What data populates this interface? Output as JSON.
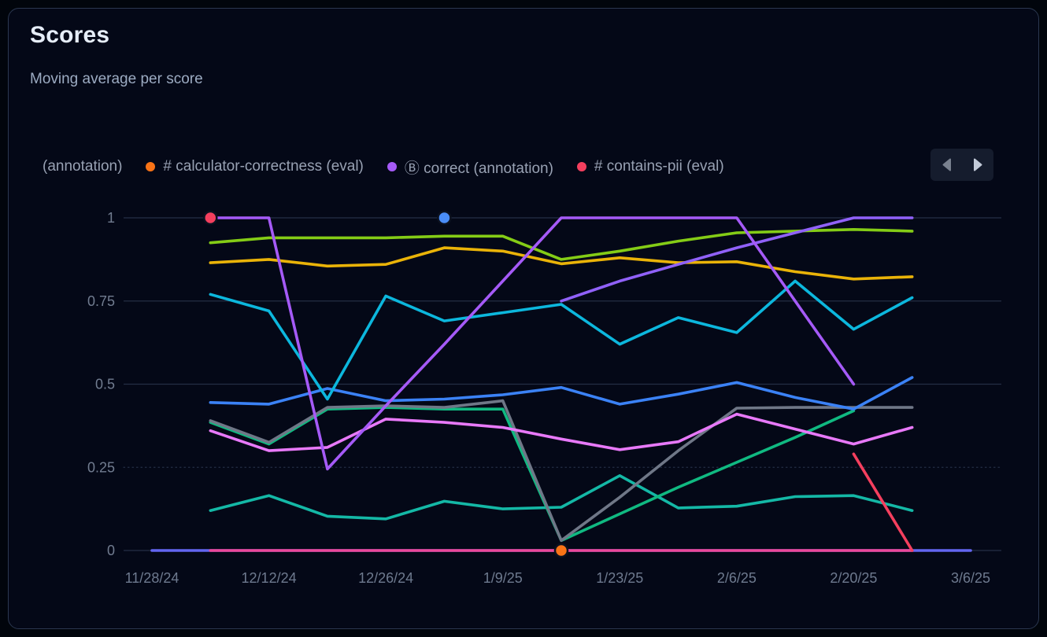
{
  "header": {
    "title": "Scores",
    "subtitle": "Moving average per score"
  },
  "legend": {
    "truncated_item": "(annotation)",
    "items": [
      {
        "label": "# calculator-correctness (eval)",
        "color": "#f97316"
      },
      {
        "label": "Ⓑ correct (annotation)",
        "color": "#a55af7"
      },
      {
        "label": "# contains-pii (eval)",
        "color": "#f43f5e"
      }
    ]
  },
  "nav": {
    "prev": "scroll-legend-left",
    "next": "scroll-legend-right"
  },
  "theme": {
    "card_bg": "#040817",
    "card_border": "#2b3750",
    "grid": "#242e45",
    "axis_text": "#6e7a8f",
    "title_text": "#e6edf8",
    "subtitle_text": "#9cabc2",
    "legend_text": "#98a1b3",
    "nav_bg": "#151c2d",
    "nav_prev_arrow": "#79818f",
    "nav_next_arrow": "#c3cbd9"
  },
  "chart_data": {
    "type": "line",
    "title": "Scores",
    "subtitle": "Moving average per score",
    "x_points": [
      "11/28/24",
      "12/5/24",
      "12/12/24",
      "12/19/24",
      "12/26/24",
      "1/2/25",
      "1/9/25",
      "1/16/25",
      "1/23/25",
      "1/30/25",
      "2/6/25",
      "2/13/25",
      "2/20/25",
      "2/27/25",
      "3/6/25"
    ],
    "x_axis_tick_labels": [
      "11/28/24",
      "12/12/24",
      "12/26/24",
      "1/9/25",
      "1/23/25",
      "2/6/25",
      "2/20/25",
      "3/6/25"
    ],
    "x_axis_tick_indices": [
      0,
      2,
      4,
      6,
      8,
      10,
      12,
      14
    ],
    "y_tick_labels": [
      "0",
      "0.25",
      "0.5",
      "0.75",
      "1"
    ],
    "y_ticks": [
      0,
      0.25,
      0.5,
      0.75,
      1
    ],
    "ylim": [
      0,
      1
    ],
    "grid": "horizontal",
    "legend_position": "top",
    "series": [
      {
        "name": "indigo-zero-line",
        "color": "#6366f1",
        "values": [
          0,
          0,
          0,
          0,
          0,
          0,
          0,
          0,
          0,
          0,
          0,
          0,
          0,
          0,
          0
        ]
      },
      {
        "name": "pink-zero-line",
        "color": "#ec4899",
        "values": [
          null,
          0,
          0,
          0,
          0,
          0,
          0,
          0,
          0,
          0,
          0,
          0,
          0,
          0,
          null
        ]
      },
      {
        "name": "teal-series",
        "color": "#14b8a6",
        "values": [
          null,
          0.12,
          0.165,
          0.103,
          0.095,
          0.148,
          0.125,
          0.13,
          0.225,
          0.128,
          0.133,
          0.162,
          0.165,
          0.12,
          null
        ]
      },
      {
        "name": "emerald-series",
        "color": "#10b981",
        "values": [
          null,
          0.385,
          0.32,
          0.425,
          0.43,
          0.425,
          0.425,
          0.03,
          0.11,
          0.19,
          0.265,
          0.34,
          0.42,
          null,
          null
        ]
      },
      {
        "name": "gray-series",
        "color": "#6f7787",
        "values": [
          null,
          0.39,
          0.325,
          0.43,
          0.435,
          0.43,
          0.45,
          0.03,
          0.16,
          0.3,
          0.428,
          0.43,
          0.43,
          0.43,
          null
        ]
      },
      {
        "name": "magenta-series",
        "color": "#e879f9",
        "values": [
          null,
          0.36,
          0.3,
          0.31,
          0.395,
          0.385,
          0.37,
          0.335,
          0.303,
          0.327,
          0.41,
          0.365,
          0.32,
          0.37,
          null
        ]
      },
      {
        "name": "blue-series",
        "color": "#3b82f6",
        "values": [
          null,
          0.445,
          0.44,
          0.487,
          0.45,
          0.455,
          0.468,
          0.49,
          0.44,
          0.47,
          0.505,
          0.46,
          0.425,
          0.52,
          null
        ]
      },
      {
        "name": "cyan-series",
        "color": "#0cb7dd",
        "values": [
          null,
          0.77,
          0.72,
          0.455,
          0.765,
          0.69,
          0.715,
          0.74,
          0.62,
          0.7,
          0.655,
          0.81,
          0.665,
          0.76,
          null
        ]
      },
      {
        "name": "amber-series",
        "color": "#eab308",
        "values": [
          null,
          0.865,
          0.875,
          0.855,
          0.86,
          0.91,
          0.9,
          0.862,
          0.88,
          0.865,
          0.868,
          0.838,
          0.816,
          0.823,
          null
        ]
      },
      {
        "name": "lime-series",
        "color": "#84cc16",
        "values": [
          null,
          0.925,
          0.94,
          0.94,
          0.94,
          0.945,
          0.945,
          0.875,
          0.9,
          0.93,
          0.955,
          0.96,
          0.965,
          0.96,
          null
        ]
      },
      {
        "name": "violet-rising-series",
        "color": "#9061f9",
        "values": [
          null,
          null,
          null,
          null,
          null,
          null,
          null,
          0.75,
          0.81,
          0.86,
          0.91,
          0.955,
          1,
          1,
          null
        ]
      },
      {
        "name": "correct-annotation",
        "color": "#a55af7",
        "values": [
          null,
          1,
          1,
          0.245,
          0.435,
          0.62,
          0.81,
          1,
          1,
          1,
          1,
          0.75,
          0.5,
          null,
          null
        ]
      },
      {
        "name": "contains-pii-eval",
        "color": "#f43f5e",
        "values": [
          null,
          1,
          null,
          null,
          null,
          null,
          null,
          null,
          null,
          null,
          null,
          null,
          0.29,
          0,
          null
        ]
      },
      {
        "name": "calculator-correctness-eval",
        "color": "#f97316",
        "values": [
          null,
          null,
          null,
          null,
          null,
          null,
          null,
          0,
          null,
          null,
          null,
          null,
          null,
          null,
          null
        ]
      },
      {
        "name": "blue-isolated-point",
        "color": "#4a8df8",
        "values": [
          null,
          null,
          null,
          null,
          null,
          1,
          null,
          null,
          null,
          null,
          null,
          null,
          null,
          null,
          null
        ]
      }
    ]
  }
}
